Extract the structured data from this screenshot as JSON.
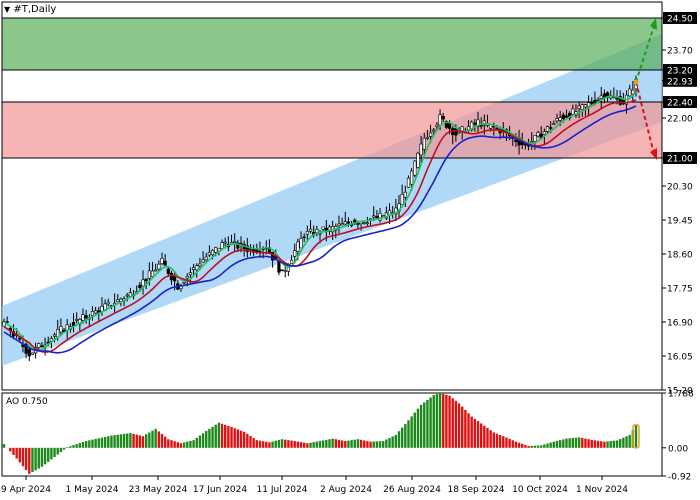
{
  "header": {
    "title": "#T,Daily"
  },
  "colors": {
    "bull": "#1b8a1b",
    "bear": "#e01010",
    "ma_fast": "#22c25a",
    "ma_mid": "#c01020",
    "ma_slow": "#1a22cc",
    "channel": "#8ec8f4",
    "zone_green": "#5aae5a",
    "zone_red": "#f29696",
    "arrow_up": "#1f9d1f",
    "arrow_down": "#e01010"
  },
  "chart_data": [
    {
      "type": "candlestick",
      "title": "#T,Daily",
      "y_ticks": [
        "24.50",
        "23.70",
        "23.20",
        "22.93",
        "22.40",
        "22.00",
        "21.00",
        "20.30",
        "19.45",
        "18.60",
        "17.75",
        "16.90",
        "16.05",
        "15.20"
      ],
      "x_ticks": [
        "9 Apr 2024",
        "1 May 2024",
        "23 May 2024",
        "17 Jun 2024",
        "11 Jul 2024",
        "2 Aug 2024",
        "26 Aug 2024",
        "18 Sep 2024",
        "10 Oct 2024",
        "1 Nov 2024"
      ],
      "ylim": [
        15.2,
        24.9
      ],
      "price_markers": [
        {
          "label": "24.50",
          "value": 24.5
        },
        {
          "label": "23.20",
          "value": 23.2
        },
        {
          "label": "22.93",
          "value": 22.93
        },
        {
          "label": "22.40",
          "value": 22.4
        },
        {
          "label": "21.00",
          "value": 21.0
        }
      ],
      "zones": [
        {
          "name": "resistance",
          "from": 23.2,
          "to": 24.5
        },
        {
          "name": "support",
          "from": 21.0,
          "to": 22.4
        }
      ],
      "channel": {
        "start_lower": 15.8,
        "start_upper": 17.3,
        "end_lower": 21.9,
        "end_upper": 24.1
      },
      "anchors": [
        [
          0,
          16.9
        ],
        [
          8,
          16.1
        ],
        [
          18,
          16.7
        ],
        [
          30,
          17.2
        ],
        [
          40,
          17.6
        ],
        [
          50,
          18.4
        ],
        [
          55,
          17.8
        ],
        [
          62,
          18.4
        ],
        [
          70,
          18.9
        ],
        [
          78,
          18.7
        ],
        [
          83,
          18.8
        ],
        [
          88,
          18.1
        ],
        [
          95,
          19.1
        ],
        [
          102,
          19.2
        ],
        [
          110,
          19.4
        ],
        [
          118,
          19.5
        ],
        [
          124,
          19.7
        ],
        [
          128,
          20.4
        ],
        [
          133,
          21.5
        ],
        [
          138,
          22.0
        ],
        [
          143,
          21.6
        ],
        [
          150,
          21.9
        ],
        [
          157,
          21.7
        ],
        [
          165,
          21.3
        ],
        [
          170,
          21.6
        ],
        [
          176,
          22.0
        ],
        [
          182,
          22.2
        ],
        [
          190,
          22.6
        ],
        [
          196,
          22.4
        ],
        [
          200,
          22.9
        ]
      ],
      "moving_averages": [
        {
          "name": "fast",
          "period": 5
        },
        {
          "name": "mid",
          "period": 9
        },
        {
          "name": "slow",
          "period": 15
        }
      ]
    },
    {
      "type": "bar",
      "title": "AO 0.750",
      "y_ticks": [
        "1.788",
        "0.00",
        "-0.92"
      ],
      "ylim": [
        -0.92,
        1.788
      ],
      "anchors": [
        [
          0,
          0.12
        ],
        [
          4,
          -0.35
        ],
        [
          8,
          -0.85
        ],
        [
          12,
          -0.62
        ],
        [
          16,
          -0.3
        ],
        [
          20,
          0.02
        ],
        [
          26,
          0.22
        ],
        [
          34,
          0.4
        ],
        [
          40,
          0.48
        ],
        [
          44,
          0.38
        ],
        [
          48,
          0.62
        ],
        [
          52,
          0.28
        ],
        [
          56,
          0.15
        ],
        [
          60,
          0.25
        ],
        [
          64,
          0.55
        ],
        [
          68,
          0.82
        ],
        [
          72,
          0.68
        ],
        [
          76,
          0.52
        ],
        [
          80,
          0.25
        ],
        [
          84,
          0.18
        ],
        [
          88,
          0.28
        ],
        [
          92,
          0.22
        ],
        [
          96,
          0.15
        ],
        [
          100,
          0.22
        ],
        [
          104,
          0.3
        ],
        [
          108,
          0.22
        ],
        [
          112,
          0.28
        ],
        [
          116,
          0.2
        ],
        [
          120,
          0.22
        ],
        [
          124,
          0.42
        ],
        [
          128,
          0.9
        ],
        [
          132,
          1.4
        ],
        [
          136,
          1.72
        ],
        [
          138,
          1.788
        ],
        [
          141,
          1.7
        ],
        [
          144,
          1.45
        ],
        [
          148,
          1.02
        ],
        [
          152,
          0.72
        ],
        [
          155,
          0.5
        ],
        [
          158,
          0.38
        ],
        [
          162,
          0.2
        ],
        [
          166,
          0.06
        ],
        [
          170,
          0.08
        ],
        [
          174,
          0.2
        ],
        [
          178,
          0.3
        ],
        [
          182,
          0.34
        ],
        [
          186,
          0.26
        ],
        [
          190,
          0.2
        ],
        [
          194,
          0.24
        ],
        [
          198,
          0.42
        ],
        [
          200,
          0.75
        ]
      ]
    }
  ]
}
